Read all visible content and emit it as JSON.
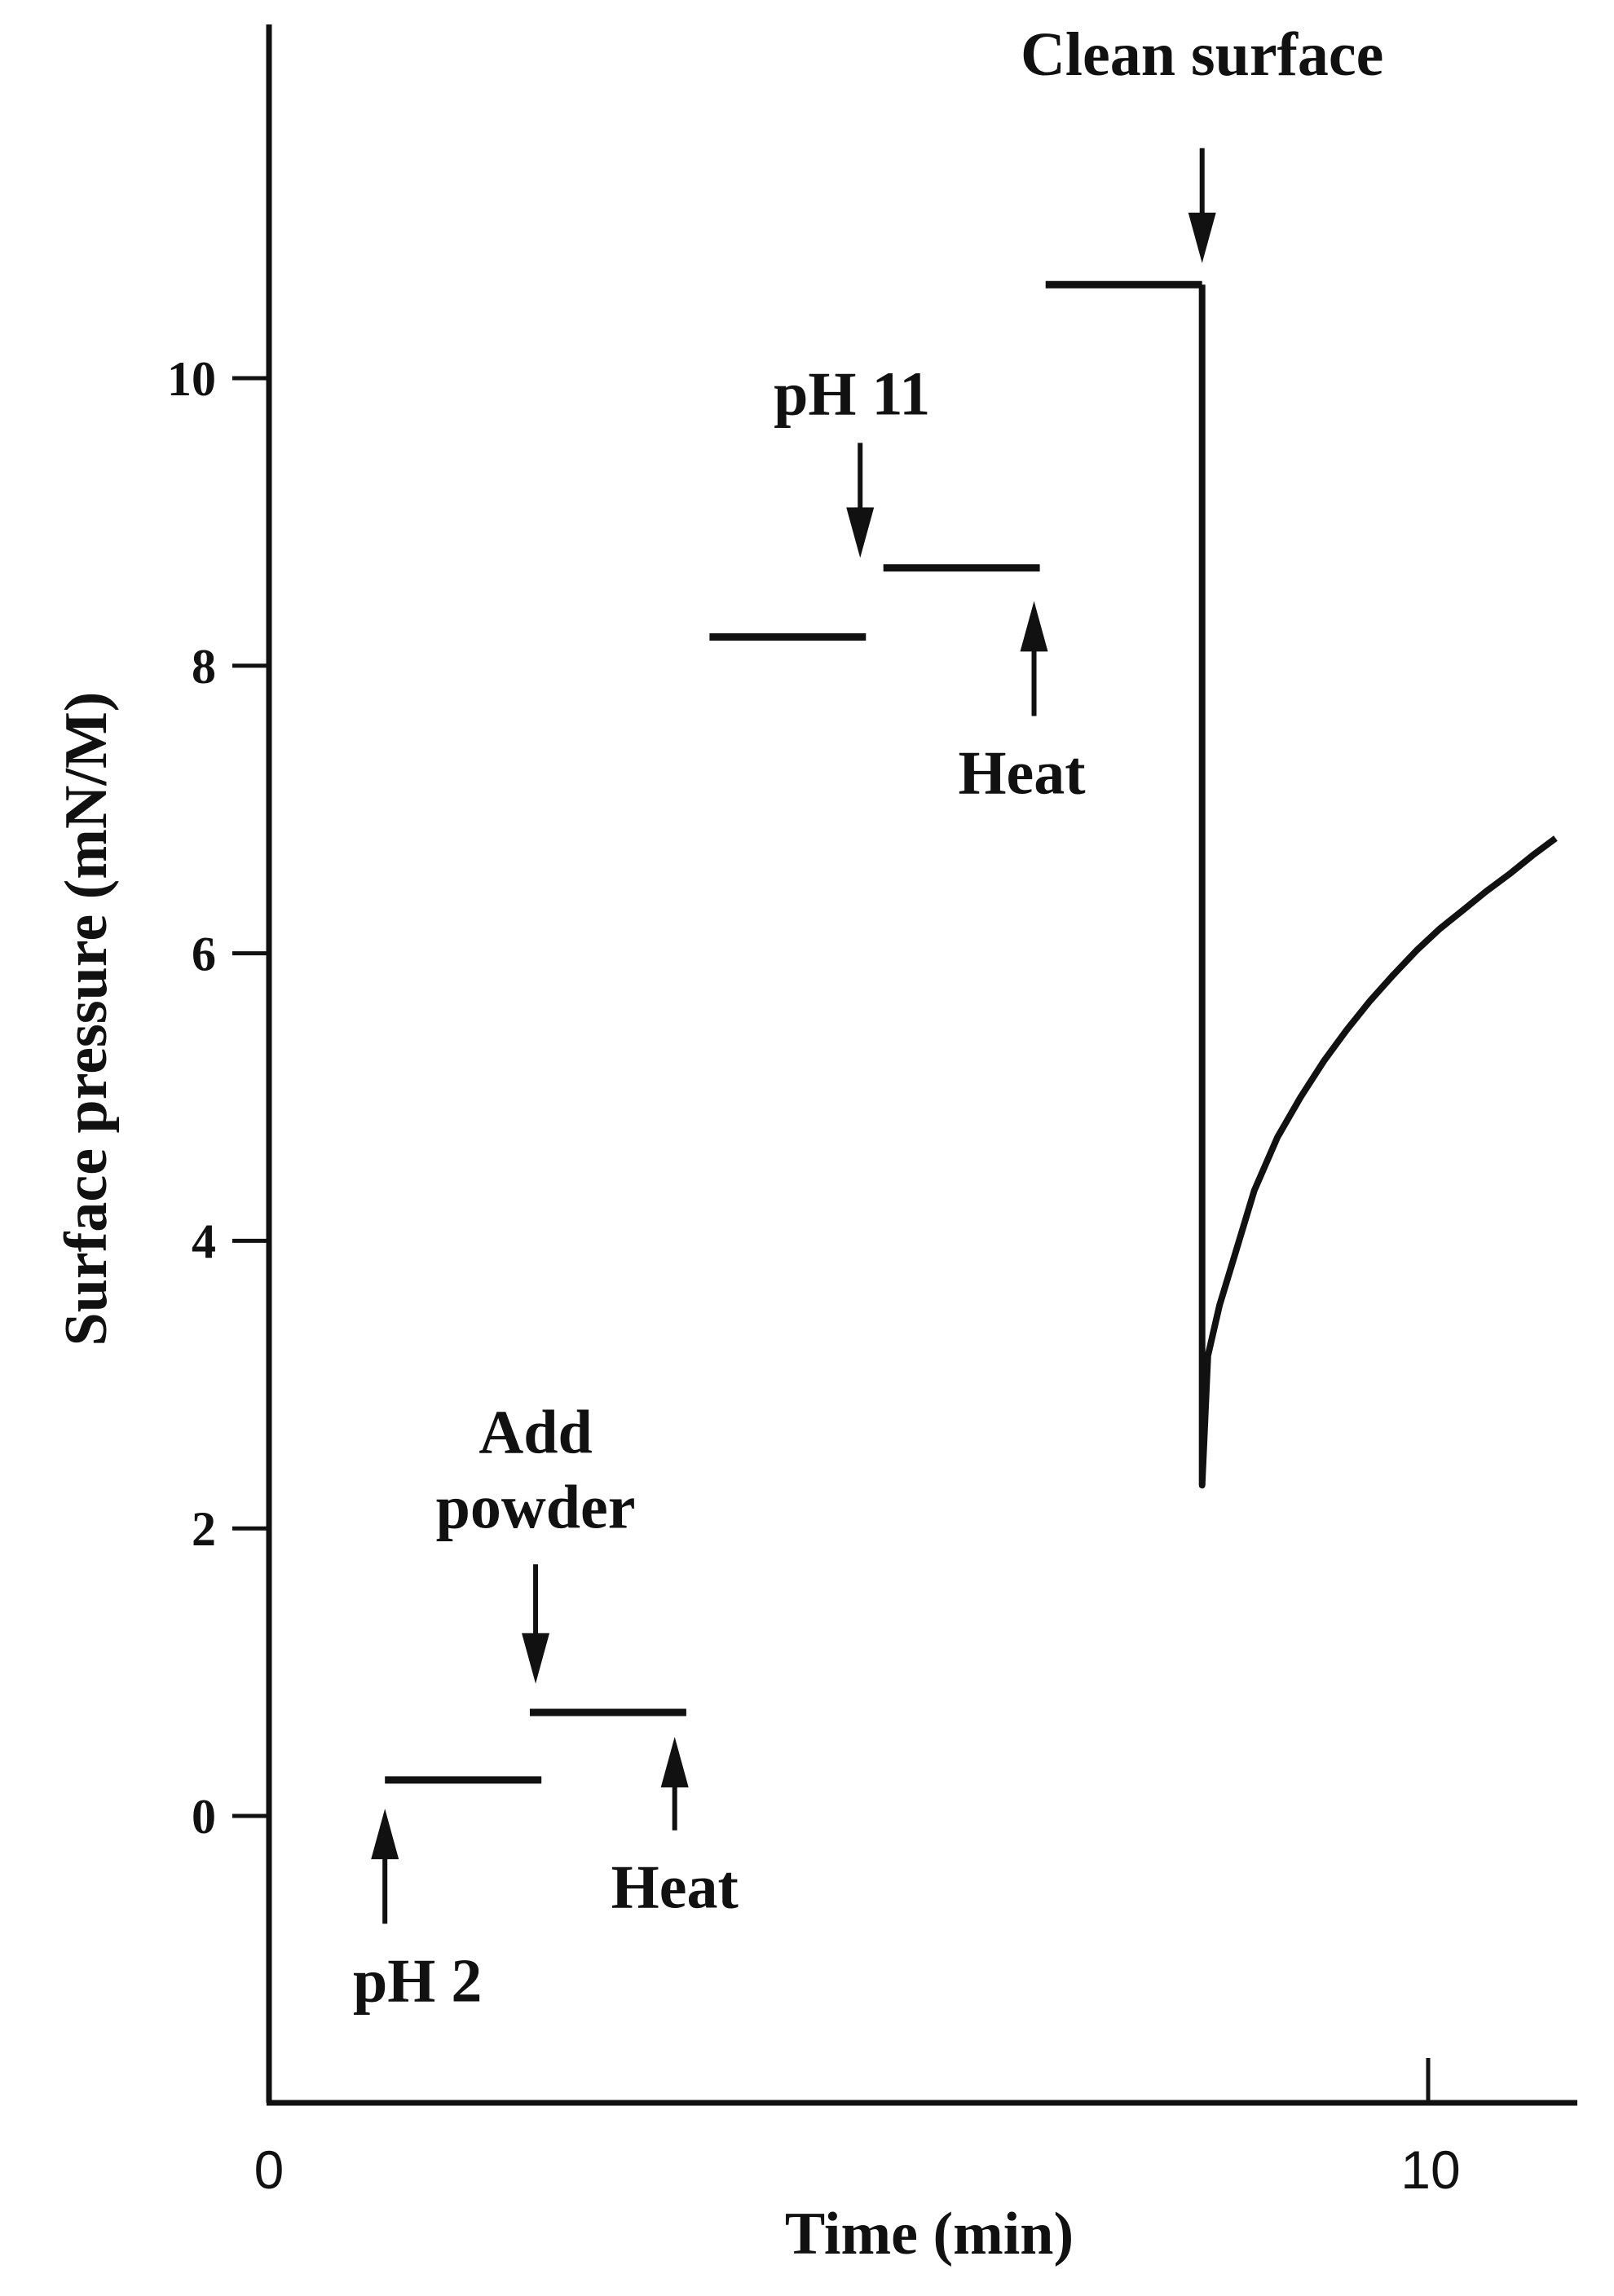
{
  "chart_data": {
    "type": "line",
    "xlabel": "Time (min)",
    "ylabel": "Surface pressure (mN/M)",
    "xlim": [
      0,
      11.3
    ],
    "ylim": [
      -2,
      12.4
    ],
    "x_ticks": [
      "0",
      "10"
    ],
    "y_ticks": [
      "0",
      "2",
      "4",
      "6",
      "8",
      "10"
    ],
    "grid": false,
    "series": [
      {
        "segments": [
          {
            "x": [
              1.0,
              2.35
            ],
            "y": [
              0.25,
              0.25
            ]
          },
          {
            "x": [
              2.25,
              3.6
            ],
            "y": [
              0.72,
              0.72
            ]
          },
          {
            "x": [
              3.8,
              5.15
            ],
            "y": [
              8.2,
              8.2
            ]
          },
          {
            "x": [
              5.3,
              6.65
            ],
            "y": [
              8.68,
              8.68
            ]
          },
          {
            "x": [
              6.7,
              8.05
            ],
            "y": [
              10.65,
              10.65
            ]
          },
          {
            "x": [
              8.05,
              8.05,
              8.1,
              8.2,
              8.35,
              8.5,
              8.7,
              8.9,
              9.1,
              9.3,
              9.5,
              9.7,
              9.9,
              10.1,
              10.3,
              10.5,
              10.7,
              10.9,
              11.1
            ],
            "y": [
              10.65,
              2.3,
              3.2,
              3.55,
              3.95,
              4.35,
              4.72,
              5.0,
              5.25,
              5.47,
              5.67,
              5.85,
              6.02,
              6.17,
              6.3,
              6.43,
              6.55,
              6.68,
              6.8
            ]
          }
        ]
      }
    ],
    "annotations": [
      {
        "lines": [
          "pH 2"
        ],
        "x": 1.0,
        "arrow": "up",
        "arrow_from": -0.75,
        "arrow_to": 0.05
      },
      {
        "lines": [
          "Add",
          "powder"
        ],
        "x": 2.3,
        "arrow": "down",
        "arrow_from": 1.75,
        "arrow_to": 0.92
      },
      {
        "lines": [
          "Heat"
        ],
        "x": 3.5,
        "arrow": "up",
        "arrow_from": -0.1,
        "arrow_to": 0.55
      },
      {
        "lines": [
          "pH 11"
        ],
        "x": 5.1,
        "arrow": "down",
        "arrow_from": 9.55,
        "arrow_to": 8.75
      },
      {
        "lines": [
          "Heat"
        ],
        "x": 6.6,
        "arrow": "up",
        "arrow_from": 7.65,
        "arrow_to": 8.45
      },
      {
        "lines": [
          "Clean surface"
        ],
        "x": 8.05,
        "arrow": "down",
        "arrow_from": 11.6,
        "arrow_to": 10.8
      }
    ]
  }
}
